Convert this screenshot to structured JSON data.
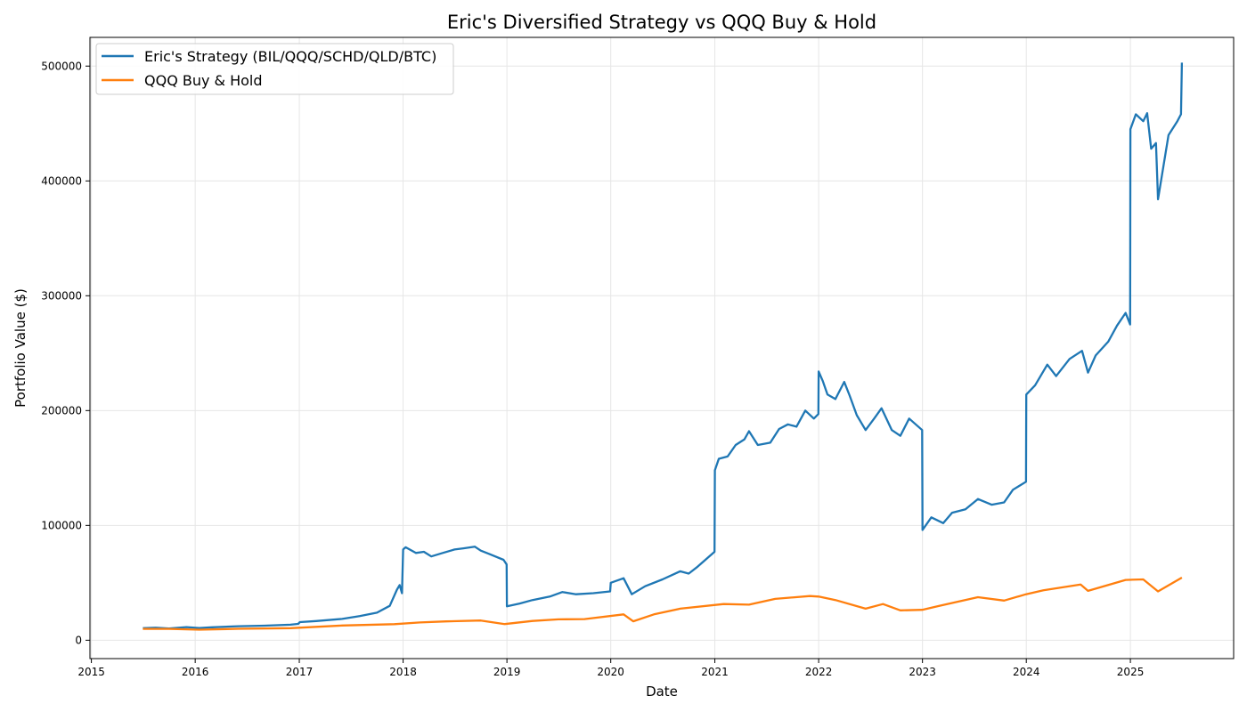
{
  "chart_data": {
    "type": "line",
    "title": "Eric's Diversified Strategy vs QQQ Buy & Hold",
    "xlabel": "Date",
    "ylabel": "Portfolio Value ($)",
    "xlim": [
      "2014-12-27",
      "2025-12-30"
    ],
    "ylim": [
      -16000,
      525000
    ],
    "xticks": [
      "2015",
      "2016",
      "2017",
      "2018",
      "2019",
      "2020",
      "2021",
      "2022",
      "2023",
      "2024",
      "2025"
    ],
    "yticks": [
      0,
      100000,
      200000,
      300000,
      400000,
      500000
    ],
    "grid": true,
    "legend": "top-left",
    "series": [
      {
        "name": "Eric's Strategy (BIL/QQQ/SCHD/QLD/BTC)",
        "color": "#1f77b4",
        "points": [
          [
            "2015-07-01",
            10500
          ],
          [
            "2015-08-15",
            10900
          ],
          [
            "2015-10-01",
            10300
          ],
          [
            "2015-12-01",
            11400
          ],
          [
            "2016-01-15",
            10700
          ],
          [
            "2016-03-01",
            11300
          ],
          [
            "2016-06-01",
            12200
          ],
          [
            "2016-09-01",
            12700
          ],
          [
            "2016-12-01",
            13500
          ],
          [
            "2016-12-28",
            14200
          ],
          [
            "2017-01-03",
            15800
          ],
          [
            "2017-03-01",
            16700
          ],
          [
            "2017-06-01",
            18600
          ],
          [
            "2017-08-01",
            21000
          ],
          [
            "2017-10-01",
            24000
          ],
          [
            "2017-11-15",
            30000
          ],
          [
            "2017-12-10",
            44000
          ],
          [
            "2017-12-20",
            48000
          ],
          [
            "2017-12-28",
            41000
          ],
          [
            "2018-01-01",
            79000
          ],
          [
            "2018-01-10",
            81000
          ],
          [
            "2018-02-15",
            76000
          ],
          [
            "2018-03-15",
            77000
          ],
          [
            "2018-04-10",
            73000
          ],
          [
            "2018-05-20",
            76000
          ],
          [
            "2018-07-01",
            79000
          ],
          [
            "2018-08-01",
            80000
          ],
          [
            "2018-09-10",
            81500
          ],
          [
            "2018-10-01",
            78000
          ],
          [
            "2018-11-01",
            75000
          ],
          [
            "2018-12-20",
            70000
          ],
          [
            "2018-12-31",
            66000
          ],
          [
            "2019-01-01",
            29500
          ],
          [
            "2019-02-15",
            32000
          ],
          [
            "2019-04-01",
            35000
          ],
          [
            "2019-06-01",
            38000
          ],
          [
            "2019-07-15",
            42000
          ],
          [
            "2019-09-01",
            40000
          ],
          [
            "2019-11-01",
            41000
          ],
          [
            "2019-12-30",
            42500
          ],
          [
            "2020-01-01",
            50000
          ],
          [
            "2020-02-15",
            54000
          ],
          [
            "2020-03-15",
            40000
          ],
          [
            "2020-05-01",
            47000
          ],
          [
            "2020-07-01",
            53000
          ],
          [
            "2020-09-01",
            60000
          ],
          [
            "2020-10-01",
            58000
          ],
          [
            "2020-11-01",
            64000
          ],
          [
            "2020-12-31",
            77000
          ],
          [
            "2021-01-01",
            148000
          ],
          [
            "2021-01-15",
            158000
          ],
          [
            "2021-02-15",
            160000
          ],
          [
            "2021-03-15",
            170000
          ],
          [
            "2021-04-15",
            175000
          ],
          [
            "2021-05-01",
            182000
          ],
          [
            "2021-06-01",
            170000
          ],
          [
            "2021-07-15",
            172000
          ],
          [
            "2021-08-15",
            184000
          ],
          [
            "2021-09-15",
            188000
          ],
          [
            "2021-10-15",
            186000
          ],
          [
            "2021-11-15",
            200000
          ],
          [
            "2021-12-15",
            193000
          ],
          [
            "2021-12-31",
            197000
          ],
          [
            "2022-01-01",
            234000
          ],
          [
            "2022-01-15",
            226000
          ],
          [
            "2022-02-01",
            214000
          ],
          [
            "2022-03-01",
            210000
          ],
          [
            "2022-04-01",
            225000
          ],
          [
            "2022-04-20",
            213000
          ],
          [
            "2022-05-15",
            196000
          ],
          [
            "2022-06-15",
            183000
          ],
          [
            "2022-07-15",
            193000
          ],
          [
            "2022-08-10",
            202000
          ],
          [
            "2022-09-15",
            183000
          ],
          [
            "2022-10-15",
            178000
          ],
          [
            "2022-11-15",
            193000
          ],
          [
            "2022-12-31",
            183000
          ],
          [
            "2023-01-01",
            96000
          ],
          [
            "2023-02-01",
            107000
          ],
          [
            "2023-03-15",
            102000
          ],
          [
            "2023-04-15",
            111000
          ],
          [
            "2023-06-01",
            114000
          ],
          [
            "2023-07-15",
            123000
          ],
          [
            "2023-09-01",
            118000
          ],
          [
            "2023-10-15",
            120000
          ],
          [
            "2023-11-15",
            131000
          ],
          [
            "2023-12-31",
            138000
          ],
          [
            "2024-01-01",
            214000
          ],
          [
            "2024-02-01",
            222000
          ],
          [
            "2024-03-15",
            240000
          ],
          [
            "2024-04-15",
            230000
          ],
          [
            "2024-06-01",
            245000
          ],
          [
            "2024-07-15",
            252000
          ],
          [
            "2024-08-05",
            233000
          ],
          [
            "2024-09-01",
            248000
          ],
          [
            "2024-10-15",
            260000
          ],
          [
            "2024-11-15",
            274000
          ],
          [
            "2024-12-15",
            285000
          ],
          [
            "2024-12-31",
            275000
          ],
          [
            "2025-01-01",
            445000
          ],
          [
            "2025-01-20",
            458000
          ],
          [
            "2025-02-15",
            452000
          ],
          [
            "2025-03-01",
            459000
          ],
          [
            "2025-03-15",
            428000
          ],
          [
            "2025-04-01",
            433000
          ],
          [
            "2025-04-08",
            384000
          ],
          [
            "2025-04-20",
            402000
          ],
          [
            "2025-05-15",
            440000
          ],
          [
            "2025-06-15",
            452000
          ],
          [
            "2025-06-28",
            458000
          ],
          [
            "2025-07-01",
            503000
          ]
        ]
      },
      {
        "name": "QQQ Buy & Hold",
        "color": "#ff7f0e",
        "points": [
          [
            "2015-07-01",
            9900
          ],
          [
            "2015-10-01",
            9900
          ],
          [
            "2016-01-15",
            9200
          ],
          [
            "2016-06-01",
            10000
          ],
          [
            "2016-12-01",
            10500
          ],
          [
            "2017-06-01",
            12800
          ],
          [
            "2017-12-01",
            14000
          ],
          [
            "2018-03-01",
            15500
          ],
          [
            "2018-06-01",
            16400
          ],
          [
            "2018-10-01",
            17200
          ],
          [
            "2018-12-24",
            14100
          ],
          [
            "2019-04-01",
            16800
          ],
          [
            "2019-07-01",
            18200
          ],
          [
            "2019-10-01",
            18400
          ],
          [
            "2020-02-15",
            22500
          ],
          [
            "2020-03-20",
            16500
          ],
          [
            "2020-06-01",
            22500
          ],
          [
            "2020-09-01",
            27500
          ],
          [
            "2021-02-01",
            31500
          ],
          [
            "2021-05-01",
            31000
          ],
          [
            "2021-08-01",
            36000
          ],
          [
            "2021-12-01",
            38500
          ],
          [
            "2022-01-01",
            38000
          ],
          [
            "2022-03-01",
            35000
          ],
          [
            "2022-06-15",
            27500
          ],
          [
            "2022-08-15",
            31500
          ],
          [
            "2022-10-15",
            26000
          ],
          [
            "2022-12-31",
            26500
          ],
          [
            "2023-03-01",
            30000
          ],
          [
            "2023-07-15",
            37500
          ],
          [
            "2023-10-15",
            34500
          ],
          [
            "2023-12-31",
            40000
          ],
          [
            "2024-03-01",
            43500
          ],
          [
            "2024-07-10",
            48500
          ],
          [
            "2024-08-05",
            43000
          ],
          [
            "2024-12-15",
            52500
          ],
          [
            "2025-02-15",
            53000
          ],
          [
            "2025-04-08",
            42500
          ],
          [
            "2025-07-01",
            54500
          ]
        ]
      }
    ]
  }
}
